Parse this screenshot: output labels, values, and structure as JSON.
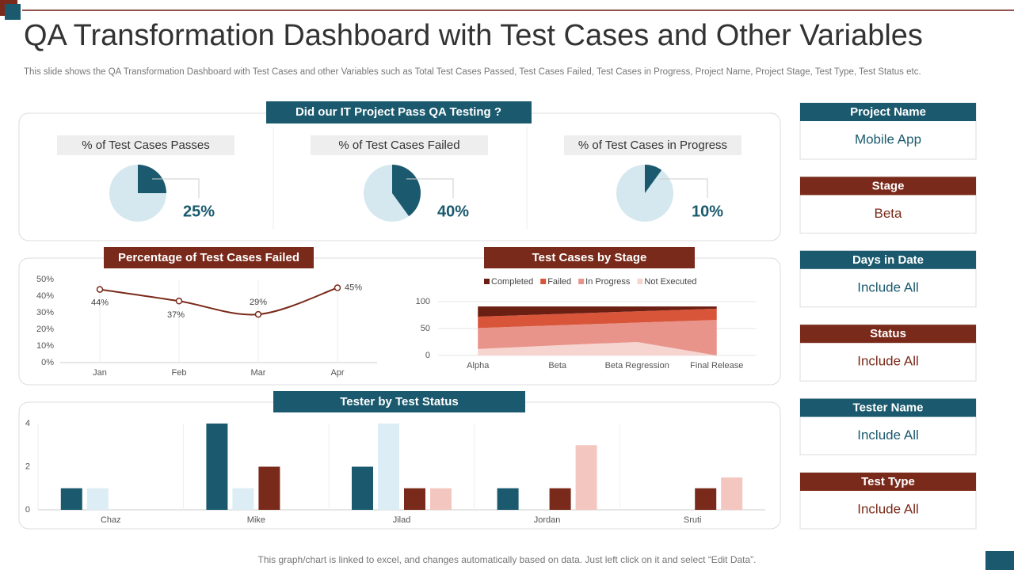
{
  "header": {
    "title": "QA Transformation Dashboard with Test Cases and Other Variables",
    "subtitle": "This slide shows the QA Transformation Dashboard with Test Cases and other Variables such as Total Test Cases Passed, Test Cases Failed, Test Cases in Progress, Project Name, Project Stage, Test Type,  Test Status etc."
  },
  "qa_panel_title": "Did our IT Project Pass QA Testing ?",
  "chart_data": [
    {
      "type": "pie",
      "title": "% of Test Cases Passes",
      "values": [
        25
      ],
      "value_labels": [
        "25%"
      ],
      "color": "#1b5a6e"
    },
    {
      "type": "pie",
      "title": "% of Test Cases Failed",
      "values": [
        40
      ],
      "value_labels": [
        "40%"
      ],
      "color": "#1b5a6e"
    },
    {
      "type": "pie",
      "title": "% of Test Cases in Progress",
      "values": [
        10
      ],
      "value_labels": [
        "10%"
      ],
      "color": "#1b5a6e"
    },
    {
      "type": "line",
      "title": "Percentage of Test Cases Failed",
      "categories": [
        "Jan",
        "Feb",
        "Mar",
        "Apr"
      ],
      "values": [
        44,
        37,
        29,
        45
      ],
      "value_labels": [
        "44%",
        "37%",
        "29%",
        "45%"
      ],
      "color": "#7a2a1a",
      "ylim": [
        0,
        50
      ],
      "yticks": [
        {
          "value": 0,
          "label": "0%"
        },
        {
          "value": 10,
          "label": "10%"
        },
        {
          "value": 20,
          "label": "20%"
        },
        {
          "value": 30,
          "label": "30%"
        },
        {
          "value": 40,
          "label": "40%"
        },
        {
          "value": 50,
          "label": "50%"
        }
      ],
      "grid": true
    },
    {
      "type": "stacked-area",
      "title": "Test Cases by Stage",
      "categories": [
        "Alpha",
        "Beta",
        "Beta Regression",
        "Final Release"
      ],
      "series": [
        {
          "name": "Completed",
          "color": "#6b1f12",
          "values": [
            19,
            14,
            9,
            4
          ]
        },
        {
          "name": "Failed",
          "color": "#d9553a",
          "values": [
            21,
            21,
            21,
            21
          ]
        },
        {
          "name": "In Progress",
          "color": "#e8948a",
          "values": [
            39,
            37,
            36,
            66
          ]
        },
        {
          "name": "Not Executed",
          "color": "#f6d4cf",
          "values": [
            12,
            19,
            25,
            0
          ]
        }
      ],
      "ylim": [
        0,
        100
      ],
      "yticks": [
        0,
        50,
        100
      ],
      "grid": true
    },
    {
      "type": "grouped-bar",
      "title": "Tester by Test Status",
      "categories": [
        "Chaz",
        "Mike",
        "Jilad",
        "Jordan",
        "Sruti"
      ],
      "series": [
        {
          "color": "#1b5a6e",
          "values": [
            1,
            4,
            2,
            1,
            0
          ]
        },
        {
          "color": "#dcedf5",
          "values": [
            1,
            1,
            4,
            0,
            0
          ]
        },
        {
          "color": "#7a2a1a",
          "values": [
            0,
            2,
            1,
            1,
            1
          ]
        },
        {
          "color": "#f3c7bf",
          "values": [
            0,
            0,
            1,
            3,
            1.5
          ]
        }
      ],
      "ylim": [
        0,
        4
      ],
      "yticks": [
        0,
        2,
        4
      ],
      "grid": true
    }
  ],
  "filters": [
    {
      "label": "Project Name",
      "value": "Mobile App"
    },
    {
      "label": "Stage",
      "value": "Beta"
    },
    {
      "label": "Days in Date",
      "value": "Include All"
    },
    {
      "label": "Status",
      "value": "Include All"
    },
    {
      "label": "Tester Name",
      "value": "Include All"
    },
    {
      "label": "Test Type",
      "value": "Include All"
    }
  ],
  "footer": "This graph/chart is linked to excel,  and changes automatically based on data. Just left click on it and select “Edit Data”."
}
